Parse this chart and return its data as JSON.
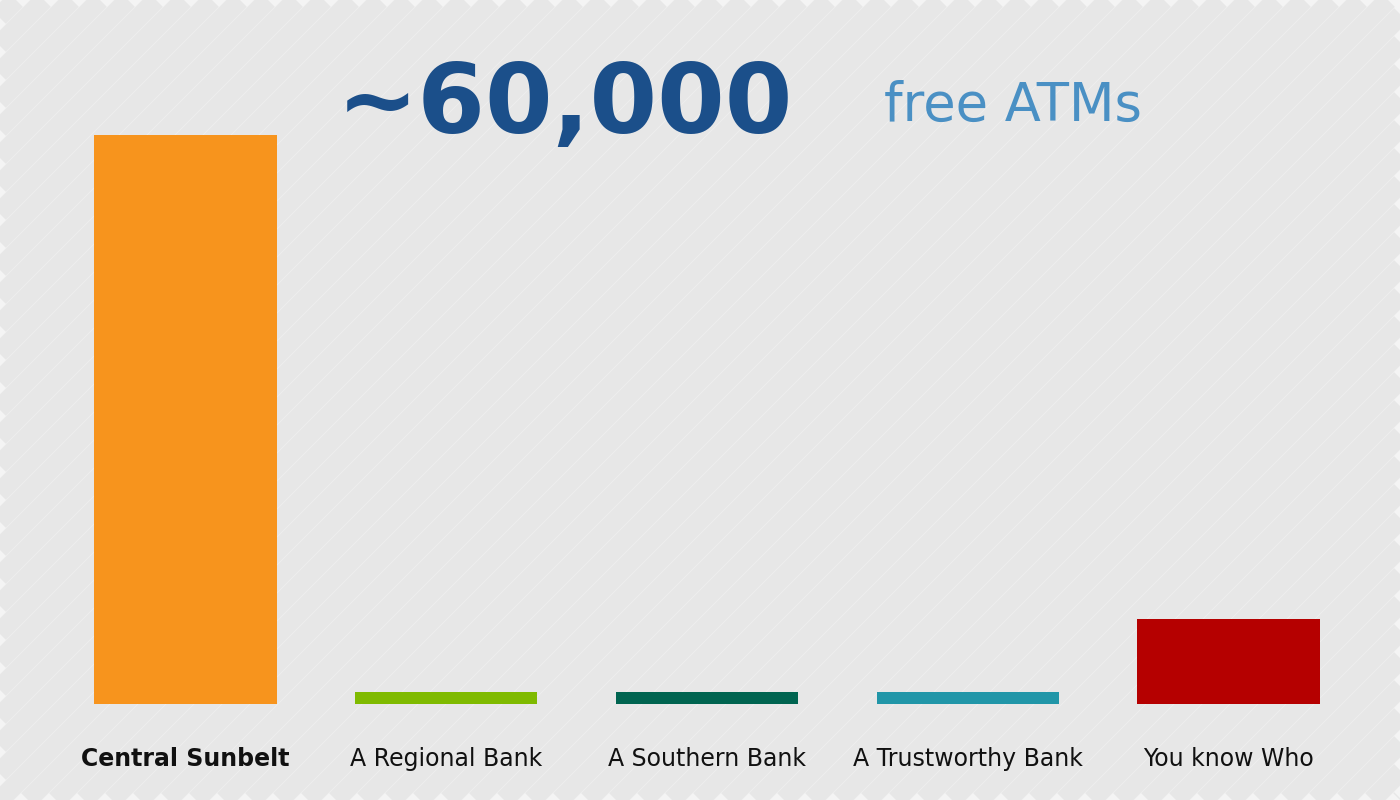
{
  "categories": [
    "Central Sunbelt",
    "A Regional Bank",
    "A Southern Bank",
    "A Trustworthy Bank",
    "You know Who"
  ],
  "values": [
    60000,
    1300,
    1300,
    1300,
    9000
  ],
  "bar_colors": [
    "#F7941D",
    "#7FBA00",
    "#006450",
    "#2196A8",
    "#B50000"
  ],
  "bar_width": 0.7,
  "ylim": [
    0,
    70000
  ],
  "annotation_number": "¬60,000",
  "annotation_suffix": " free ATMs",
  "annotation_number_color": "#1B4F8A",
  "annotation_suffix_color": "#4A90C4",
  "annotation_number_size": 70,
  "annotation_suffix_size": 38,
  "label_fontsize": 17,
  "label_color": "#111111",
  "bg_stripe_light": "#F4F4F4",
  "bg_stripe_dark": "#DCDCDC",
  "stripe_linewidth": 14,
  "stripe_alpha": 1.0
}
